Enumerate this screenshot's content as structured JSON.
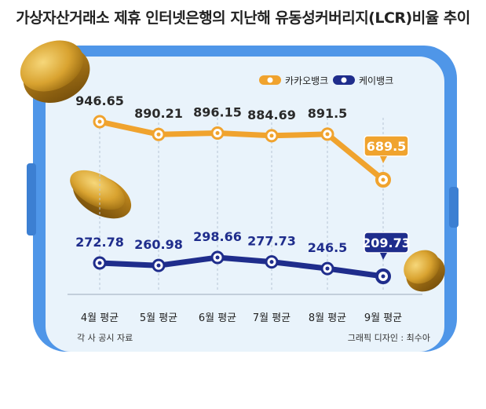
{
  "title": "가상자산거래소 제휴 인터넷은행의 지난해 유동성커버리지(LCR)비율 추이",
  "source": "각 사 공시 자료",
  "credit": "그래픽 디자인 : 최수아",
  "colors": {
    "orange": "#f0a32e",
    "navy": "#1f2d8c",
    "panel_bg": "#e9f3fb",
    "frame": "#4f96e8"
  },
  "chart_data": {
    "type": "line",
    "categories": [
      "4월 평균",
      "5월 평균",
      "6월 평균",
      "7월 평균",
      "8월 평균",
      "9월 평균"
    ],
    "series": [
      {
        "name": "카카오뱅크",
        "color": "#f0a32e",
        "values": [
          946.65,
          890.21,
          896.15,
          884.69,
          891.5,
          689.5
        ],
        "labels": [
          "946.65",
          "890.21",
          "896.15",
          "884.69",
          "891.5",
          "689.5"
        ]
      },
      {
        "name": "케이뱅크",
        "color": "#1f2d8c",
        "values": [
          272.78,
          260.98,
          298.66,
          277.73,
          246.5,
          209.73
        ],
        "labels": [
          "272.78",
          "260.98",
          "298.66",
          "277.73",
          "246.5",
          "209.73"
        ]
      }
    ],
    "legend_position": "top-right",
    "grid": "vertical-dashed",
    "highlight_last": true
  }
}
